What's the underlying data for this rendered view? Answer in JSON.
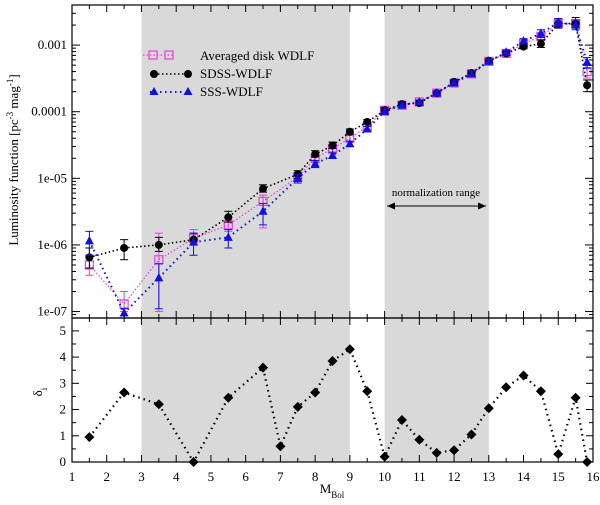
{
  "chart_data": [
    {
      "type": "scatter",
      "scale": "log",
      "ylabel": "Luminosity function [pc^-3 mag^-1]",
      "ylabel_parts": {
        "main": "Luminosity function [pc",
        "sup1": "-3",
        "mid": " mag",
        "sup2": "-1",
        "end": "]"
      },
      "xlim": [
        1,
        16
      ],
      "ylim": [
        8e-08,
        0.004
      ],
      "ytick_values": [
        1e-07,
        1e-06,
        1e-05,
        0.0001,
        0.001
      ],
      "ytick_labels": [
        "1e-07",
        "1e-06",
        "1e-05",
        "0.0001",
        "0.001"
      ],
      "shaded_ranges": [
        [
          3,
          9
        ],
        [
          10,
          13
        ]
      ],
      "annotation": {
        "text": "normalization range",
        "x_from": 10,
        "x_to": 13,
        "y": 1.6e-05
      },
      "legend": [
        "Averaged disk WDLF",
        "SDSS-WDLF",
        "SSS-WDLF"
      ],
      "series": [
        {
          "name": "Averaged disk WDLF",
          "color": "#e040e0",
          "marker": "open-square",
          "line": "dotted",
          "x": [
            1.5,
            2.5,
            3.5,
            4.5,
            5.5,
            6.5,
            7.5,
            8.0,
            8.5,
            9.0,
            9.5,
            10.0,
            10.5,
            11.0,
            11.5,
            12.0,
            12.5,
            13.0,
            13.5,
            14.0,
            14.5,
            15.0,
            15.5,
            15.83
          ],
          "y": [
            5e-07,
            1.3e-07,
            6e-07,
            1.25e-06,
            2e-06,
            4.5e-06,
            1.05e-05,
            2e-05,
            2.8e-05,
            4e-05,
            6e-05,
            0.000105,
            0.000125,
            0.00014,
            0.00019,
            0.00027,
            0.00037,
            0.00057,
            0.00075,
            0.00105,
            0.00135,
            0.0021,
            0.0021,
            0.0004
          ],
          "err_low": [
            3.5e-07,
            1e-07,
            1e-07,
            1e-06,
            1.6e-06,
            1.8e-06,
            9e-06,
            1.8e-05,
            2.5e-05,
            3.6e-05,
            5.4e-05,
            9.5e-05,
            0.000115,
            0.00013,
            0.000175,
            0.00025,
            0.00034,
            0.00052,
            0.00068,
            0.00095,
            0.0012,
            0.0019,
            0.0018,
            0.00032
          ],
          "err_high": [
            7e-07,
            2e-07,
            1.5e-06,
            1.7e-06,
            2.6e-06,
            5.6e-06,
            1.2e-05,
            2.2e-05,
            3.1e-05,
            4.4e-05,
            6.6e-05,
            0.000115,
            0.000135,
            0.00015,
            0.000205,
            0.00029,
            0.0004,
            0.00062,
            0.00082,
            0.00115,
            0.0015,
            0.0023,
            0.0024,
            0.0005
          ]
        },
        {
          "name": "SDSS-WDLF",
          "color": "#000000",
          "marker": "filled-circle",
          "line": "dotted",
          "x": [
            1.5,
            2.5,
            3.5,
            4.5,
            5.5,
            6.5,
            7.5,
            8.0,
            8.5,
            9.0,
            9.5,
            10.0,
            10.5,
            11.0,
            11.5,
            12.0,
            12.5,
            13.0,
            13.5,
            14.0,
            14.5,
            15.0,
            15.5,
            15.83
          ],
          "y": [
            6.5e-07,
            9e-07,
            1e-06,
            1.2e-06,
            2.6e-06,
            7e-06,
            1.15e-05,
            2.3e-05,
            3.1e-05,
            5e-05,
            7e-05,
            0.000105,
            0.00013,
            0.000135,
            0.00019,
            0.00028,
            0.00038,
            0.00058,
            0.00075,
            0.00095,
            0.00105,
            0.0021,
            0.0021,
            0.00025
          ],
          "err_low": [
            4.5e-07,
            6e-07,
            8e-07,
            1e-06,
            2.2e-06,
            6.2e-06,
            1e-05,
            2.1e-05,
            2.8e-05,
            4.6e-05,
            6.5e-05,
            9.5e-05,
            0.00012,
            0.000125,
            0.000175,
            0.00026,
            0.00035,
            0.00054,
            0.0007,
            0.00088,
            0.00092,
            0.0018,
            0.0018,
            0.0002
          ],
          "err_high": [
            9e-07,
            1.2e-06,
            1.3e-06,
            1.5e-06,
            3.2e-06,
            8e-06,
            1.3e-05,
            2.6e-05,
            3.5e-05,
            5.5e-05,
            7.6e-05,
            0.000115,
            0.00014,
            0.000145,
            0.000205,
            0.0003,
            0.00041,
            0.00062,
            0.0008,
            0.00105,
            0.0012,
            0.0025,
            0.0026,
            0.0003
          ]
        },
        {
          "name": "SSS-WDLF",
          "color": "#1010e0",
          "marker": "filled-triangle",
          "line": "dotted",
          "x": [
            1.5,
            2.5,
            3.5,
            4.5,
            5.5,
            6.5,
            7.5,
            8.0,
            8.5,
            9.0,
            9.5,
            10.0,
            10.5,
            11.0,
            11.5,
            12.0,
            12.5,
            13.0,
            13.5,
            14.0,
            14.5,
            15.0,
            15.5,
            15.83
          ],
          "y": [
            1.15e-06,
            9.5e-08,
            3.2e-07,
            1.1e-06,
            1.3e-06,
            3.2e-06,
            1e-05,
            1.65e-05,
            2.2e-05,
            3.3e-05,
            5.5e-05,
            0.0001,
            0.000125,
            0.00014,
            0.00019,
            0.00027,
            0.00037,
            0.00057,
            0.00078,
            0.00115,
            0.0015,
            0.0022,
            0.002,
            0.00055
          ],
          "err_low": [
            7e-07,
            8e-08,
            1.1e-07,
            7e-07,
            9e-07,
            2e-06,
            8.5e-06,
            1.45e-05,
            2e-05,
            3e-05,
            5e-05,
            9e-05,
            0.000115,
            0.00013,
            0.000175,
            0.00025,
            0.00034,
            0.00053,
            0.00072,
            0.00105,
            0.0013,
            0.0019,
            0.0017,
            0.00045
          ],
          "err_high": [
            1.6e-06,
            1.1e-07,
            5.2e-07,
            1.5e-06,
            1.7e-06,
            4.2e-06,
            1.15e-05,
            1.85e-05,
            2.4e-05,
            3.6e-05,
            6e-05,
            0.00011,
            0.000135,
            0.00015,
            0.000205,
            0.00029,
            0.0004,
            0.00061,
            0.00084,
            0.00125,
            0.0017,
            0.0025,
            0.0023,
            0.00065
          ]
        }
      ]
    },
    {
      "type": "scatter",
      "xlabel": "M_Bol",
      "xlabel_parts": {
        "main": "M",
        "sub": "Bol"
      },
      "ylabel": "δ_i",
      "ylabel_parts": {
        "main": "δ",
        "sub": "i"
      },
      "xlim": [
        1,
        16
      ],
      "ylim": [
        0,
        5.3
      ],
      "xtick_values": [
        1,
        2,
        3,
        4,
        5,
        6,
        7,
        8,
        9,
        10,
        11,
        12,
        13,
        14,
        15,
        16
      ],
      "xtick_labels": [
        "1",
        "2",
        "3",
        "4",
        "5",
        "6",
        "7",
        "8",
        "9",
        "10",
        "11",
        "12",
        "13",
        "14",
        "15",
        "16"
      ],
      "ytick_values": [
        0,
        1,
        2,
        3,
        4,
        5
      ],
      "ytick_labels": [
        "0",
        "1",
        "2",
        "3",
        "4",
        "5"
      ],
      "shaded_ranges": [
        [
          3,
          9
        ],
        [
          10,
          13
        ]
      ],
      "series": [
        {
          "name": "delta",
          "color": "#000000",
          "marker": "filled-diamond",
          "line": "dotted",
          "x": [
            1.5,
            2.5,
            3.5,
            4.5,
            5.5,
            6.5,
            7.0,
            7.5,
            8.0,
            8.5,
            9.0,
            9.5,
            10.0,
            10.5,
            11.0,
            11.5,
            12.0,
            12.5,
            13.0,
            13.5,
            14.0,
            14.5,
            15.0,
            15.5,
            15.83
          ],
          "y": [
            0.95,
            2.65,
            2.2,
            0.0,
            2.45,
            3.6,
            0.6,
            2.1,
            2.65,
            3.85,
            4.3,
            2.7,
            0.2,
            1.6,
            0.85,
            0.35,
            0.45,
            1.05,
            2.05,
            2.85,
            3.3,
            2.7,
            0.3,
            2.45,
            0.0
          ]
        }
      ]
    }
  ]
}
